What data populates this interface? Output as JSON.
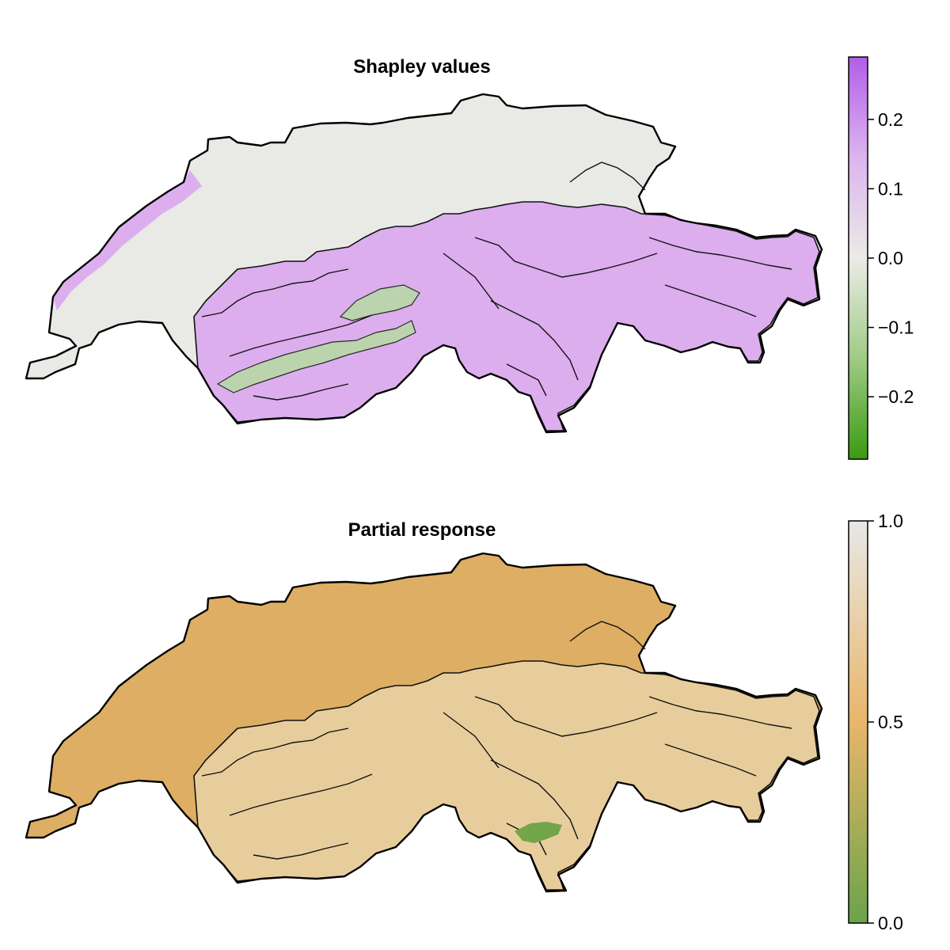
{
  "chart_data": [
    {
      "type": "heatmap",
      "title": "Shapley values",
      "map_region": "Switzerland",
      "colorbar": {
        "range": [
          -0.29,
          0.29
        ],
        "ticks": [
          0.2,
          0.1,
          0.0,
          -0.1,
          -0.2
        ],
        "tick_labels": [
          "0.2",
          "0.1",
          "0.0",
          "−0.1",
          "−0.2"
        ],
        "colormap": [
          "#3a9a10",
          "#9fcb86",
          "#ebebe7",
          "#dcb4ee",
          "#b25ee8"
        ]
      },
      "fill": {
        "base": "#e9e9e6",
        "positive_zone": "#dcaeee",
        "negative_zone": "#bcd4ad"
      },
      "grid": false,
      "legend": "colorbar-right"
    },
    {
      "type": "heatmap",
      "title": "Partial response",
      "map_region": "Switzerland",
      "colorbar": {
        "range": [
          0.0,
          1.0
        ],
        "ticks": [
          1.0,
          0.5,
          0.0
        ],
        "tick_labels": [
          "1.0",
          "0.5",
          "0.0"
        ],
        "colormap": [
          "#6ba34a",
          "#e8b66a",
          "#e8e8e6"
        ]
      },
      "fill": {
        "base": "#ddae63",
        "alpine_zone": "#e8cd9c",
        "low_zone": "#72a648"
      },
      "grid": false,
      "legend": "colorbar-right"
    }
  ]
}
